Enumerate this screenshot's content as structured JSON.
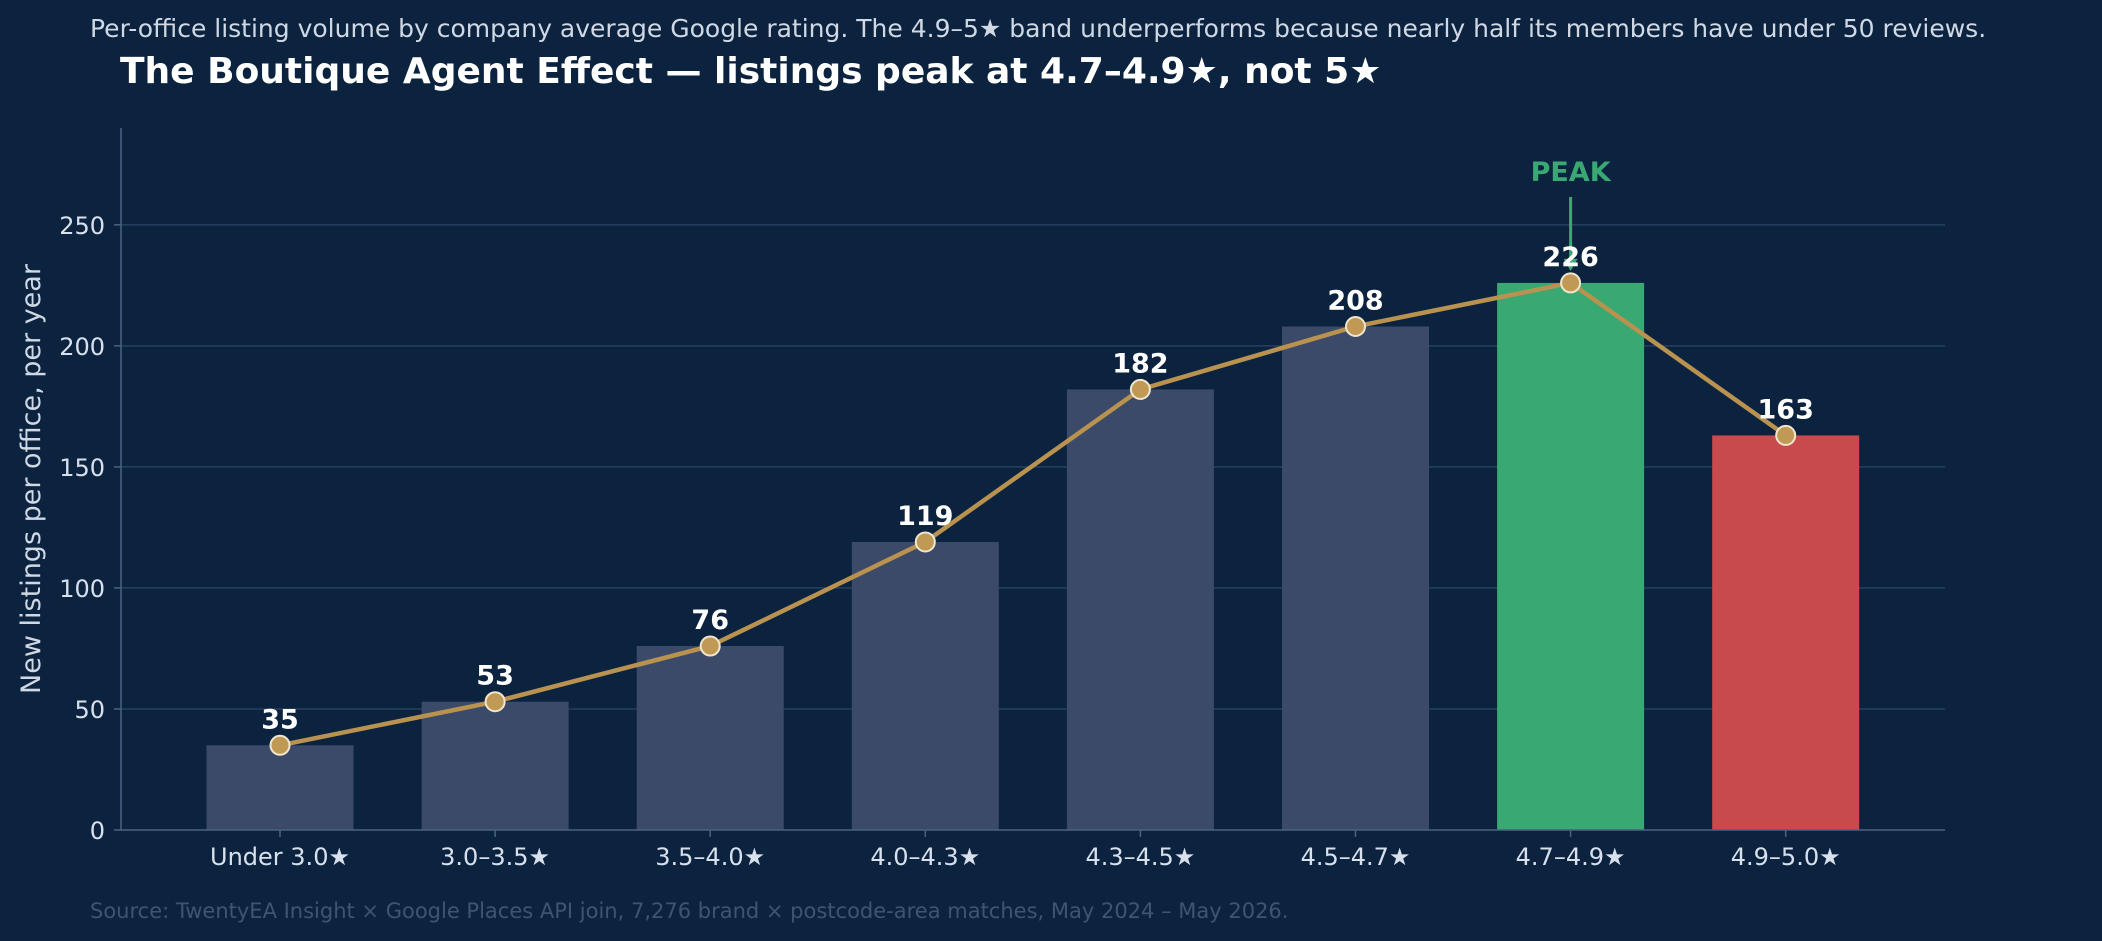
{
  "chart_data": {
    "type": "bar",
    "title": "The Boutique Agent Effect — listings peak at 4.7–4.9★, not 5★",
    "subtitle": "Per-office listing volume by company average Google rating. The 4.9–5★ band underperforms because nearly half its members have under 50 reviews.",
    "source": "Source: TwentyEA Insight × Google Places API join, 7,276 brand × postcode-area matches, May 2024 – May 2026.",
    "xlabel": "",
    "ylabel": "New listings per office, per year",
    "ylim": [
      0,
      290
    ],
    "yticks": [
      0,
      50,
      100,
      150,
      200,
      250
    ],
    "grid": "horizontal",
    "categories": [
      "Under 3.0★",
      "3.0–3.5★",
      "3.5–4.0★",
      "4.0–4.3★",
      "4.3–4.5★",
      "4.5–4.7★",
      "4.7–4.9★",
      "4.9–5.0★"
    ],
    "values": [
      35,
      53,
      76,
      119,
      182,
      208,
      226,
      163
    ],
    "bar_colors": [
      "#3a4a68",
      "#3a4a68",
      "#3a4a68",
      "#3a4a68",
      "#3a4a68",
      "#3a4a68",
      "#3aa873",
      "#c94a4c"
    ],
    "line_overlay": true,
    "annotation": {
      "text": "PEAK",
      "category_index": 6
    }
  },
  "colors": {
    "background": "#0c2340",
    "bar_default": "#3a4a68",
    "bar_peak": "#3aa873",
    "bar_low": "#c94a4c",
    "line": "#b8924e",
    "marker_fill": "#c09a55",
    "marker_edge": "#f0e6cf",
    "grid": "#26405f",
    "axis": "#4b6282",
    "tick_text": "#d8e0ec",
    "value_label": "#ffffff",
    "title": "#ffffff",
    "subtitle": "#d0d8e4",
    "source": "#3f5473",
    "peak_text": "#3aa873"
  }
}
